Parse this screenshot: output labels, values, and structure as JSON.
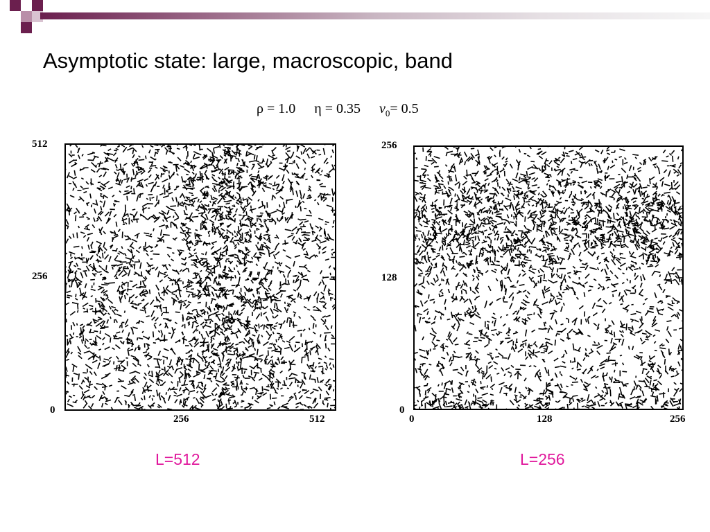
{
  "slide": {
    "title": "Asymptotic state: large, macroscopic, band",
    "params": {
      "rho": "ρ = 1.0",
      "eta": "η = 0.35",
      "v0_symbol": "v",
      "v0_sub": "0",
      "v0_value": " = 0.5"
    },
    "accent_color": "#6b1f4e",
    "caption_color": "#e0189c"
  },
  "panels": [
    {
      "caption": "L=512",
      "y_ticks": [
        "512",
        "256",
        "0"
      ],
      "x_ticks": [
        "256",
        "512"
      ]
    },
    {
      "caption": "L=256",
      "y_ticks": [
        "256",
        "128",
        "0"
      ],
      "x_ticks": [
        "0",
        "128",
        "256"
      ]
    }
  ]
}
